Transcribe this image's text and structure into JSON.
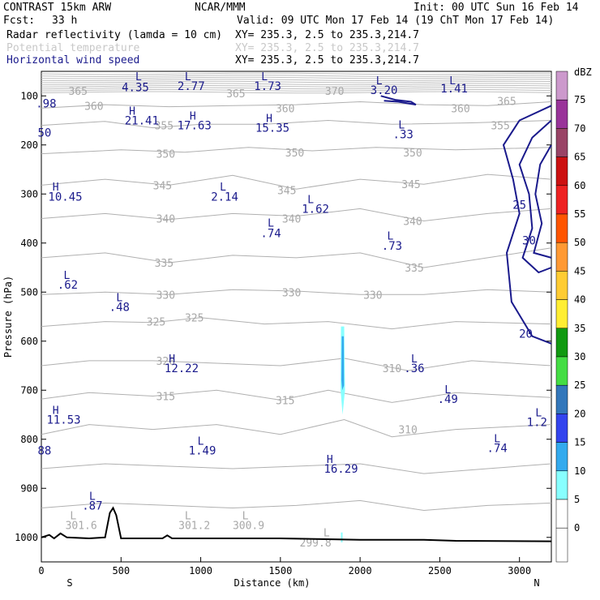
{
  "header": {
    "model": "CONTRAST 15km ARW",
    "org": "NCAR/MMM",
    "init": "Init: 00 UTC Sun 16 Feb 14",
    "fcst_label": "Fcst:",
    "fcst_value": "33 h",
    "valid": "Valid: 09 UTC Mon 17 Feb 14 (19 ChT Mon 17 Feb 14)",
    "fields": [
      {
        "name": "Radar reflectivity (lamda = 10 cm)",
        "xy": "XY= 235.3,  2.5 to 235.3,214.7",
        "color": "#000000"
      },
      {
        "name": "Potential temperature",
        "xy": "XY= 235.3,  2.5 to 235.3,214.7",
        "color": "#c8c8c8"
      },
      {
        "name": "Horizontal wind speed",
        "xy": "XY= 235.3,  2.5 to 235.3,214.7",
        "color": "#1a1a8c"
      }
    ]
  },
  "chart_data": {
    "type": "cross-section",
    "xlabel": "Distance (km)",
    "ylabel": "Pressure (hPa)",
    "xlim": [
      0,
      3200
    ],
    "ylim": [
      1050,
      50
    ],
    "x_ticks": [
      0,
      500,
      1000,
      1500,
      2000,
      2500,
      3000
    ],
    "y_ticks": [
      100,
      200,
      300,
      400,
      500,
      600,
      700,
      800,
      900,
      1000
    ],
    "x_end_labels": {
      "left": "S",
      "right": "N"
    },
    "colorbar": {
      "unit": "dBZ",
      "levels": [
        {
          "value": "75",
          "color": "#cc99cc"
        },
        {
          "value": "70",
          "color": "#993399"
        },
        {
          "value": "65",
          "color": "#994466"
        },
        {
          "value": "60",
          "color": "#cc1111"
        },
        {
          "value": "55",
          "color": "#ee2222"
        },
        {
          "value": "50",
          "color": "#ff5500"
        },
        {
          "value": "45",
          "color": "#ff9933"
        },
        {
          "value": "40",
          "color": "#ffcc33"
        },
        {
          "value": "35",
          "color": "#ffee33"
        },
        {
          "value": "30",
          "color": "#119911"
        },
        {
          "value": "25",
          "color": "#44dd44"
        },
        {
          "value": "20",
          "color": "#3377bb"
        },
        {
          "value": "15",
          "color": "#3344ee"
        },
        {
          "value": "10",
          "color": "#33aaee"
        },
        {
          "value": "5",
          "color": "#88ffff"
        },
        {
          "value": "0",
          "color": "#ffffff"
        }
      ]
    },
    "theta_labels": [
      {
        "text": "365",
        "x": 230,
        "p": 90
      },
      {
        "text": "370",
        "x": 1840,
        "p": 90
      },
      {
        "text": "365",
        "x": 1220,
        "p": 95
      },
      {
        "text": "365",
        "x": 2920,
        "p": 110
      },
      {
        "text": "360",
        "x": 330,
        "p": 120
      },
      {
        "text": "360",
        "x": 1530,
        "p": 125
      },
      {
        "text": "360",
        "x": 2630,
        "p": 125
      },
      {
        "text": "355",
        "x": 770,
        "p": 160
      },
      {
        "text": "355",
        "x": 2880,
        "p": 160
      },
      {
        "text": "350",
        "x": 780,
        "p": 218
      },
      {
        "text": "350",
        "x": 1590,
        "p": 215
      },
      {
        "text": "350",
        "x": 2330,
        "p": 215
      },
      {
        "text": "345",
        "x": 760,
        "p": 282
      },
      {
        "text": "345",
        "x": 1540,
        "p": 292
      },
      {
        "text": "345",
        "x": 2320,
        "p": 280
      },
      {
        "text": "340",
        "x": 780,
        "p": 350
      },
      {
        "text": "340",
        "x": 1570,
        "p": 350
      },
      {
        "text": "340",
        "x": 2330,
        "p": 355
      },
      {
        "text": "335",
        "x": 770,
        "p": 440
      },
      {
        "text": "335",
        "x": 2340,
        "p": 450
      },
      {
        "text": "330",
        "x": 780,
        "p": 505
      },
      {
        "text": "330",
        "x": 1570,
        "p": 500
      },
      {
        "text": "330",
        "x": 2080,
        "p": 505
      },
      {
        "text": "325",
        "x": 720,
        "p": 560
      },
      {
        "text": "325",
        "x": 960,
        "p": 552
      },
      {
        "text": "320",
        "x": 780,
        "p": 640
      },
      {
        "text": "315",
        "x": 780,
        "p": 712
      },
      {
        "text": "315",
        "x": 1530,
        "p": 720
      },
      {
        "text": "310",
        "x": 2200,
        "p": 655
      },
      {
        "text": "310",
        "x": 2300,
        "p": 780
      }
    ],
    "sfc_theta_labels": [
      {
        "text": "301.6",
        "x": 250,
        "p": 975
      },
      {
        "text": "301.2",
        "x": 960,
        "p": 975
      },
      {
        "text": "300.9",
        "x": 1300,
        "p": 975
      },
      {
        "text": "299.8",
        "x": 1720,
        "p": 1010
      }
    ],
    "wind_labels": [
      {
        "text": ".98",
        "x": 30,
        "p": 115
      },
      {
        "text": "4.35",
        "x": 590,
        "p": 82
      },
      {
        "text": "2.77",
        "x": 940,
        "p": 80
      },
      {
        "text": "1.73",
        "x": 1420,
        "p": 80
      },
      {
        "text": "3.20",
        "x": 2150,
        "p": 88
      },
      {
        "text": "1.41",
        "x": 2590,
        "p": 85
      },
      {
        "text": "21.41",
        "x": 630,
        "p": 150
      },
      {
        "text": "17.63",
        "x": 960,
        "p": 160
      },
      {
        "text": "15.35",
        "x": 1450,
        "p": 165
      },
      {
        "text": ".33",
        "x": 2270,
        "p": 178
      },
      {
        "text": "50",
        "x": 20,
        "p": 175
      },
      {
        "text": "10.45",
        "x": 150,
        "p": 305
      },
      {
        "text": "2.14",
        "x": 1150,
        "p": 305
      },
      {
        "text": "1.62",
        "x": 1720,
        "p": 330
      },
      {
        "text": ".74",
        "x": 1440,
        "p": 380
      },
      {
        "text": ".73",
        "x": 2200,
        "p": 405
      },
      {
        "text": "25",
        "x": 3000,
        "p": 322
      },
      {
        "text": "30",
        "x": 3060,
        "p": 395
      },
      {
        "text": ".62",
        "x": 165,
        "p": 485
      },
      {
        "text": ".48",
        "x": 490,
        "p": 530
      },
      {
        "text": "20",
        "x": 3040,
        "p": 585
      },
      {
        "text": "12.22",
        "x": 880,
        "p": 655
      },
      {
        "text": ".36",
        "x": 2340,
        "p": 655
      },
      {
        "text": ".49",
        "x": 2550,
        "p": 718
      },
      {
        "text": "11.53",
        "x": 140,
        "p": 760
      },
      {
        "text": "1.2",
        "x": 3110,
        "p": 765
      },
      {
        "text": ".74",
        "x": 2860,
        "p": 818
      },
      {
        "text": "88",
        "x": 20,
        "p": 823
      },
      {
        "text": "1.49",
        "x": 1010,
        "p": 823
      },
      {
        "text": "16.29",
        "x": 1880,
        "p": 860
      },
      {
        "text": ".87",
        "x": 320,
        "p": 935
      }
    ],
    "wind_markers": [
      {
        "text": "L",
        "x": 610,
        "p": 60
      },
      {
        "text": "L",
        "x": 920,
        "p": 60
      },
      {
        "text": "L",
        "x": 1400,
        "p": 60
      },
      {
        "text": "L",
        "x": 2120,
        "p": 68
      },
      {
        "text": "L",
        "x": 2580,
        "p": 68
      },
      {
        "text": "H",
        "x": 570,
        "p": 130
      },
      {
        "text": "H",
        "x": 950,
        "p": 140
      },
      {
        "text": "H",
        "x": 1430,
        "p": 145
      },
      {
        "text": "L",
        "x": 2260,
        "p": 158
      },
      {
        "text": "H",
        "x": 90,
        "p": 285
      },
      {
        "text": "L",
        "x": 1140,
        "p": 285
      },
      {
        "text": "L",
        "x": 1690,
        "p": 310
      },
      {
        "text": "L",
        "x": 1440,
        "p": 358
      },
      {
        "text": "L",
        "x": 2190,
        "p": 385
      },
      {
        "text": "L",
        "x": 160,
        "p": 465
      },
      {
        "text": "L",
        "x": 490,
        "p": 510
      },
      {
        "text": "H",
        "x": 820,
        "p": 635
      },
      {
        "text": "L",
        "x": 2340,
        "p": 635
      },
      {
        "text": "L",
        "x": 2550,
        "p": 698
      },
      {
        "text": "H",
        "x": 90,
        "p": 740
      },
      {
        "text": "L",
        "x": 3120,
        "p": 745
      },
      {
        "text": "L",
        "x": 2860,
        "p": 798
      },
      {
        "text": "L",
        "x": 1000,
        "p": 803
      },
      {
        "text": "H",
        "x": 1810,
        "p": 840
      },
      {
        "text": "L",
        "x": 320,
        "p": 915
      },
      {
        "text": "L",
        "x": 200,
        "p": 955
      },
      {
        "text": "L",
        "x": 920,
        "p": 955
      },
      {
        "text": "L",
        "x": 1280,
        "p": 955
      },
      {
        "text": "L",
        "x": 1790,
        "p": 990
      }
    ]
  }
}
